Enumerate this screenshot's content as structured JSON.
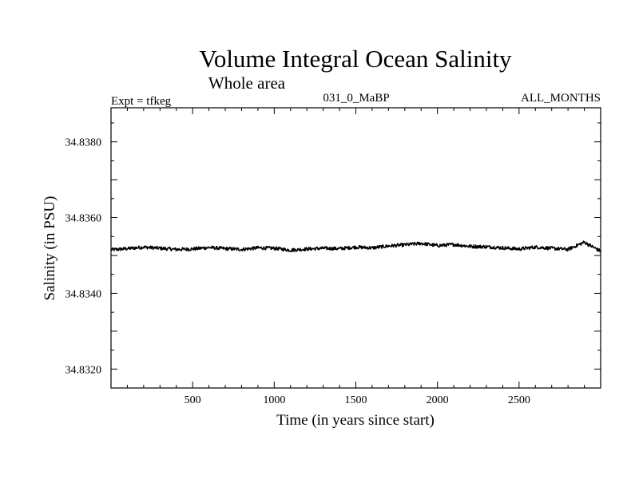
{
  "chart_data": {
    "type": "line",
    "title": "Volume Integral Ocean Salinity",
    "subtitle": "Whole area",
    "experiment": "Expt = tfkeg",
    "period": "031_0_MaBP",
    "months": "ALL_MONTHS",
    "xlabel": "Time (in years since start)",
    "ylabel": "Salinity (in PSU)",
    "xlim": [
      0,
      3000
    ],
    "ylim": [
      34.8315,
      34.8389
    ],
    "x_ticks": [
      500,
      1000,
      1500,
      2000,
      2500
    ],
    "x_tick_labels": [
      "500",
      "1000",
      "1500",
      "2000",
      "2500"
    ],
    "y_ticks": [
      34.832,
      34.834,
      34.836,
      34.838
    ],
    "y_tick_labels": [
      "34.8320",
      "34.8340",
      "34.8360",
      "34.8380"
    ],
    "grid": false,
    "series": [
      {
        "color": "#000000",
        "x": [
          0,
          100,
          200,
          300,
          400,
          500,
          600,
          700,
          800,
          900,
          1000,
          1100,
          1200,
          1300,
          1400,
          1500,
          1600,
          1700,
          1800,
          1900,
          2000,
          2100,
          2200,
          2300,
          2400,
          2500,
          2600,
          2700,
          2800,
          2900,
          3000
        ],
        "values": [
          34.83515,
          34.83518,
          34.83522,
          34.83519,
          34.83516,
          34.83517,
          34.83521,
          34.83518,
          34.83516,
          34.8352,
          34.83519,
          34.83514,
          34.83517,
          34.83519,
          34.83518,
          34.83522,
          34.8352,
          34.83525,
          34.83528,
          34.83532,
          34.83526,
          34.83529,
          34.83524,
          34.83523,
          34.8352,
          34.83517,
          34.83522,
          34.83519,
          34.83516,
          34.83535,
          34.83511
        ]
      }
    ]
  }
}
